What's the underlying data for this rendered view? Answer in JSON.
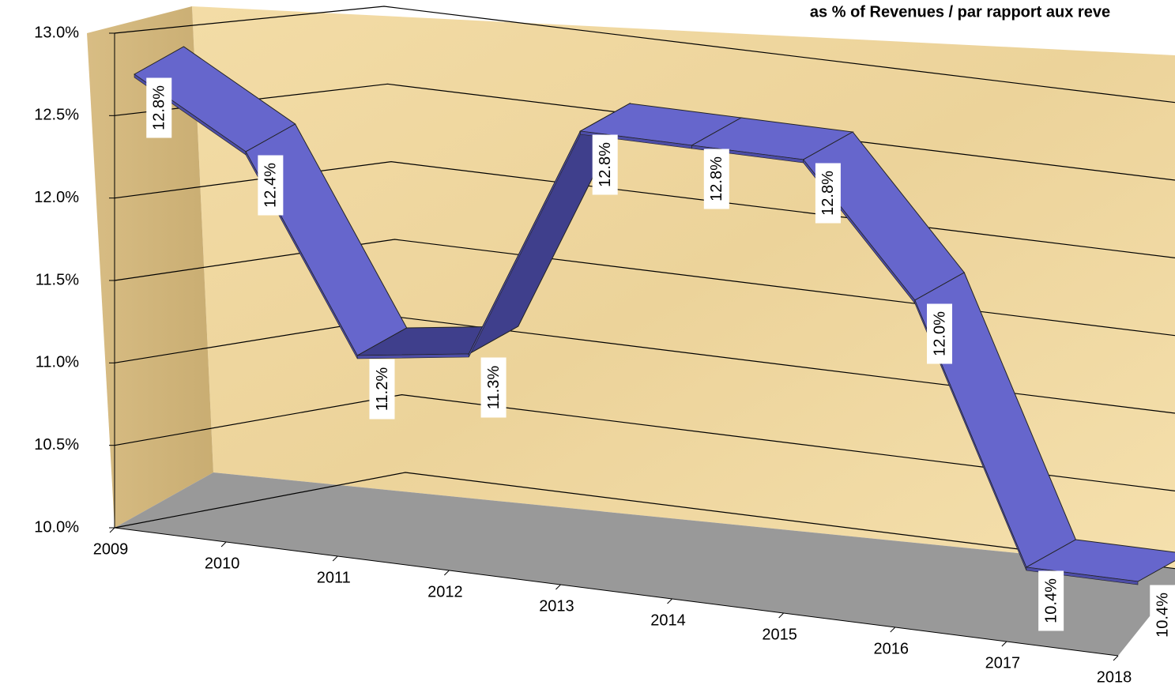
{
  "chart_data": {
    "type": "line3d",
    "title": "as % of Revenues / par rapport aux reve",
    "categories": [
      "2009",
      "2010",
      "2011",
      "2012",
      "2013",
      "2014",
      "2015",
      "2016",
      "2017",
      "2018"
    ],
    "values": [
      12.8,
      12.4,
      11.2,
      11.3,
      12.8,
      12.8,
      12.8,
      12.0,
      10.4,
      10.4
    ],
    "value_labels": [
      "12.8%",
      "12.4%",
      "11.2%",
      "11.3%",
      "12.8%",
      "12.8%",
      "12.8%",
      "12.0%",
      "10.4%",
      "10.4%"
    ],
    "color": "#6666cc",
    "ylim": [
      10,
      13
    ],
    "yticks": [
      {
        "value": 10,
        "label": "10.0%"
      },
      {
        "value": 10.5,
        "label": "10.5%"
      },
      {
        "value": 11,
        "label": "11.0%"
      },
      {
        "value": 11.5,
        "label": "11.5%"
      },
      {
        "value": 12,
        "label": "12.0%"
      },
      {
        "value": 12.5,
        "label": "12.5%"
      },
      {
        "value": 13,
        "label": "13.0%"
      }
    ],
    "grid": true
  }
}
